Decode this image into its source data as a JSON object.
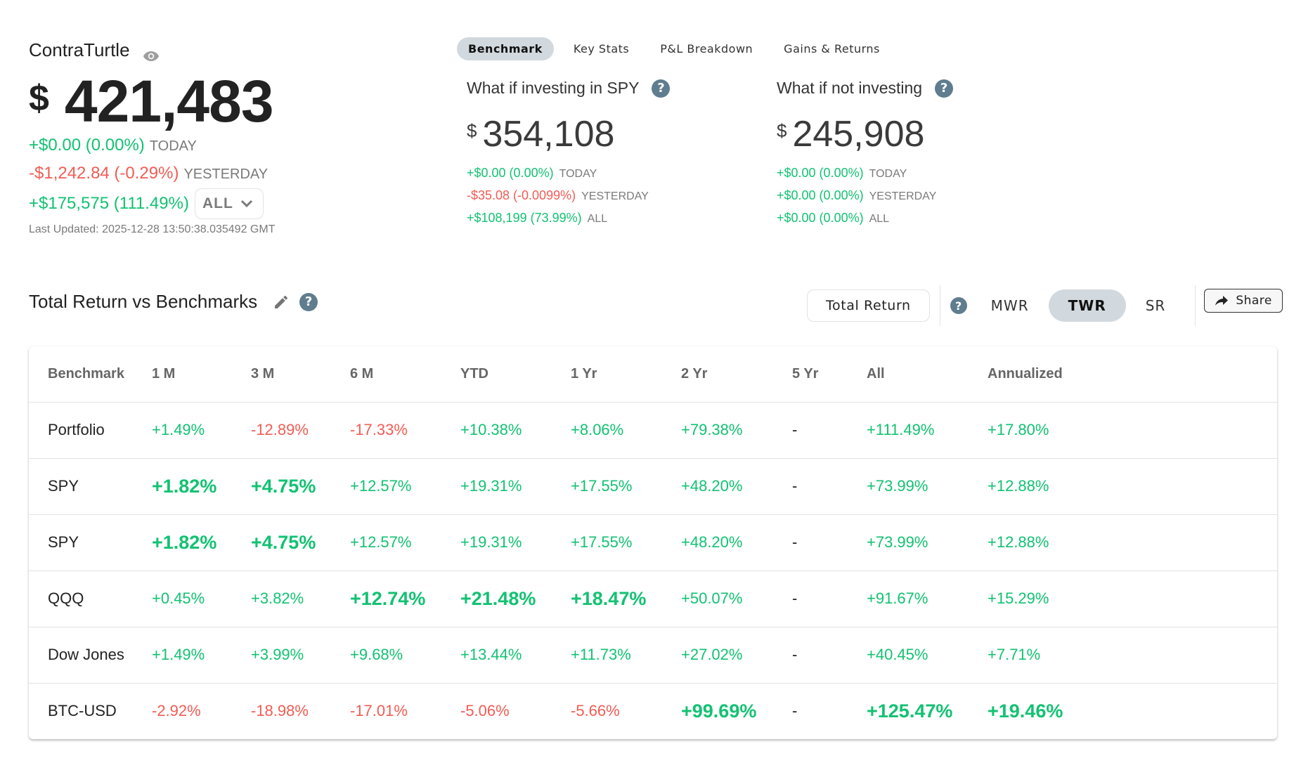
{
  "account": {
    "name": "ContraTurtle",
    "visibility_icon": "eye-icon",
    "currency_symbol": "$",
    "value": "421,483",
    "today": {
      "change": "+$0.00 (0.00%)",
      "label": "TODAY",
      "tone": "positive"
    },
    "yesterday": {
      "change": "-$1,242.84 (-0.29%)",
      "label": "YESTERDAY",
      "tone": "negative"
    },
    "all": {
      "change": "+$175,575 (111.49%)",
      "tone": "positive"
    },
    "range_select": {
      "value": "ALL",
      "icon": "chevron-down-icon"
    },
    "last_updated": "Last Updated: 2025-12-28 13:50:38.035492 GMT"
  },
  "tabs": [
    {
      "label": "Benchmark",
      "active": true
    },
    {
      "label": "Key Stats",
      "active": false
    },
    {
      "label": "P&L Breakdown",
      "active": false
    },
    {
      "label": "Gains & Returns",
      "active": false
    }
  ],
  "whatif": [
    {
      "title": "What if investing in SPY",
      "help_icon": "?",
      "currency_symbol": "$",
      "value": "354,108",
      "rows": [
        {
          "change": "+$0.00 (0.00%)",
          "label": "TODAY",
          "tone": "positive"
        },
        {
          "change": "-$35.08 (-0.0099%)",
          "label": "YESTERDAY",
          "tone": "negative"
        },
        {
          "change": "+$108,199 (73.99%)",
          "label": "ALL",
          "tone": "positive"
        }
      ]
    },
    {
      "title": "What if not investing",
      "help_icon": "?",
      "currency_symbol": "$",
      "value": "245,908",
      "rows": [
        {
          "change": "+$0.00 (0.00%)",
          "label": "TODAY",
          "tone": "positive"
        },
        {
          "change": "+$0.00 (0.00%)",
          "label": "YESTERDAY",
          "tone": "positive"
        },
        {
          "change": "+$0.00 (0.00%)",
          "label": "ALL",
          "tone": "positive"
        }
      ]
    }
  ],
  "section": {
    "title": "Total Return vs Benchmarks",
    "edit_icon": "pencil-icon",
    "help_icon": "?"
  },
  "controls": {
    "metric_button": "Total Return",
    "help_icon": "?",
    "modes": [
      {
        "label": "MWR",
        "active": false
      },
      {
        "label": "TWR",
        "active": true
      },
      {
        "label": "SR",
        "active": false
      }
    ],
    "share_label": "Share",
    "share_icon": "share-arrow-icon"
  },
  "colors": {
    "positive": "#12c272",
    "negative": "#f25c54",
    "active_pill": "#d2d9de",
    "help_icon_bg": "#5f7d8e"
  },
  "table": {
    "columns": [
      "Benchmark",
      "1 M",
      "3 M",
      "6 M",
      "YTD",
      "1 Yr",
      "2 Yr",
      "5 Yr",
      "All",
      "Annualized"
    ],
    "rows": [
      {
        "name": "Portfolio",
        "cells": [
          {
            "v": "+1.49%",
            "t": "pos",
            "best": false
          },
          {
            "v": "-12.89%",
            "t": "neg",
            "best": false
          },
          {
            "v": "-17.33%",
            "t": "neg",
            "best": false
          },
          {
            "v": "+10.38%",
            "t": "pos",
            "best": false
          },
          {
            "v": "+8.06%",
            "t": "pos",
            "best": false
          },
          {
            "v": "+79.38%",
            "t": "pos",
            "best": false
          },
          {
            "v": "-",
            "t": "none",
            "best": false
          },
          {
            "v": "+111.49%",
            "t": "pos",
            "best": false
          },
          {
            "v": "+17.80%",
            "t": "pos",
            "best": false
          }
        ]
      },
      {
        "name": "SPY",
        "cells": [
          {
            "v": "+1.82%",
            "t": "pos",
            "best": true
          },
          {
            "v": "+4.75%",
            "t": "pos",
            "best": true
          },
          {
            "v": "+12.57%",
            "t": "pos",
            "best": false
          },
          {
            "v": "+19.31%",
            "t": "pos",
            "best": false
          },
          {
            "v": "+17.55%",
            "t": "pos",
            "best": false
          },
          {
            "v": "+48.20%",
            "t": "pos",
            "best": false
          },
          {
            "v": "-",
            "t": "none",
            "best": false
          },
          {
            "v": "+73.99%",
            "t": "pos",
            "best": false
          },
          {
            "v": "+12.88%",
            "t": "pos",
            "best": false
          }
        ]
      },
      {
        "name": "SPY",
        "cells": [
          {
            "v": "+1.82%",
            "t": "pos",
            "best": true
          },
          {
            "v": "+4.75%",
            "t": "pos",
            "best": true
          },
          {
            "v": "+12.57%",
            "t": "pos",
            "best": false
          },
          {
            "v": "+19.31%",
            "t": "pos",
            "best": false
          },
          {
            "v": "+17.55%",
            "t": "pos",
            "best": false
          },
          {
            "v": "+48.20%",
            "t": "pos",
            "best": false
          },
          {
            "v": "-",
            "t": "none",
            "best": false
          },
          {
            "v": "+73.99%",
            "t": "pos",
            "best": false
          },
          {
            "v": "+12.88%",
            "t": "pos",
            "best": false
          }
        ]
      },
      {
        "name": "QQQ",
        "cells": [
          {
            "v": "+0.45%",
            "t": "pos",
            "best": false
          },
          {
            "v": "+3.82%",
            "t": "pos",
            "best": false
          },
          {
            "v": "+12.74%",
            "t": "pos",
            "best": true
          },
          {
            "v": "+21.48%",
            "t": "pos",
            "best": true
          },
          {
            "v": "+18.47%",
            "t": "pos",
            "best": true
          },
          {
            "v": "+50.07%",
            "t": "pos",
            "best": false
          },
          {
            "v": "-",
            "t": "none",
            "best": false
          },
          {
            "v": "+91.67%",
            "t": "pos",
            "best": false
          },
          {
            "v": "+15.29%",
            "t": "pos",
            "best": false
          }
        ]
      },
      {
        "name": "Dow Jones",
        "cells": [
          {
            "v": "+1.49%",
            "t": "pos",
            "best": false
          },
          {
            "v": "+3.99%",
            "t": "pos",
            "best": false
          },
          {
            "v": "+9.68%",
            "t": "pos",
            "best": false
          },
          {
            "v": "+13.44%",
            "t": "pos",
            "best": false
          },
          {
            "v": "+11.73%",
            "t": "pos",
            "best": false
          },
          {
            "v": "+27.02%",
            "t": "pos",
            "best": false
          },
          {
            "v": "-",
            "t": "none",
            "best": false
          },
          {
            "v": "+40.45%",
            "t": "pos",
            "best": false
          },
          {
            "v": "+7.71%",
            "t": "pos",
            "best": false
          }
        ]
      },
      {
        "name": "BTC-USD",
        "cells": [
          {
            "v": "-2.92%",
            "t": "neg",
            "best": false
          },
          {
            "v": "-18.98%",
            "t": "neg",
            "best": false
          },
          {
            "v": "-17.01%",
            "t": "neg",
            "best": false
          },
          {
            "v": "-5.06%",
            "t": "neg",
            "best": false
          },
          {
            "v": "-5.66%",
            "t": "neg",
            "best": false
          },
          {
            "v": "+99.69%",
            "t": "pos",
            "best": true
          },
          {
            "v": "-",
            "t": "none",
            "best": false
          },
          {
            "v": "+125.47%",
            "t": "pos",
            "best": true
          },
          {
            "v": "+19.46%",
            "t": "pos",
            "best": true
          }
        ]
      }
    ]
  }
}
